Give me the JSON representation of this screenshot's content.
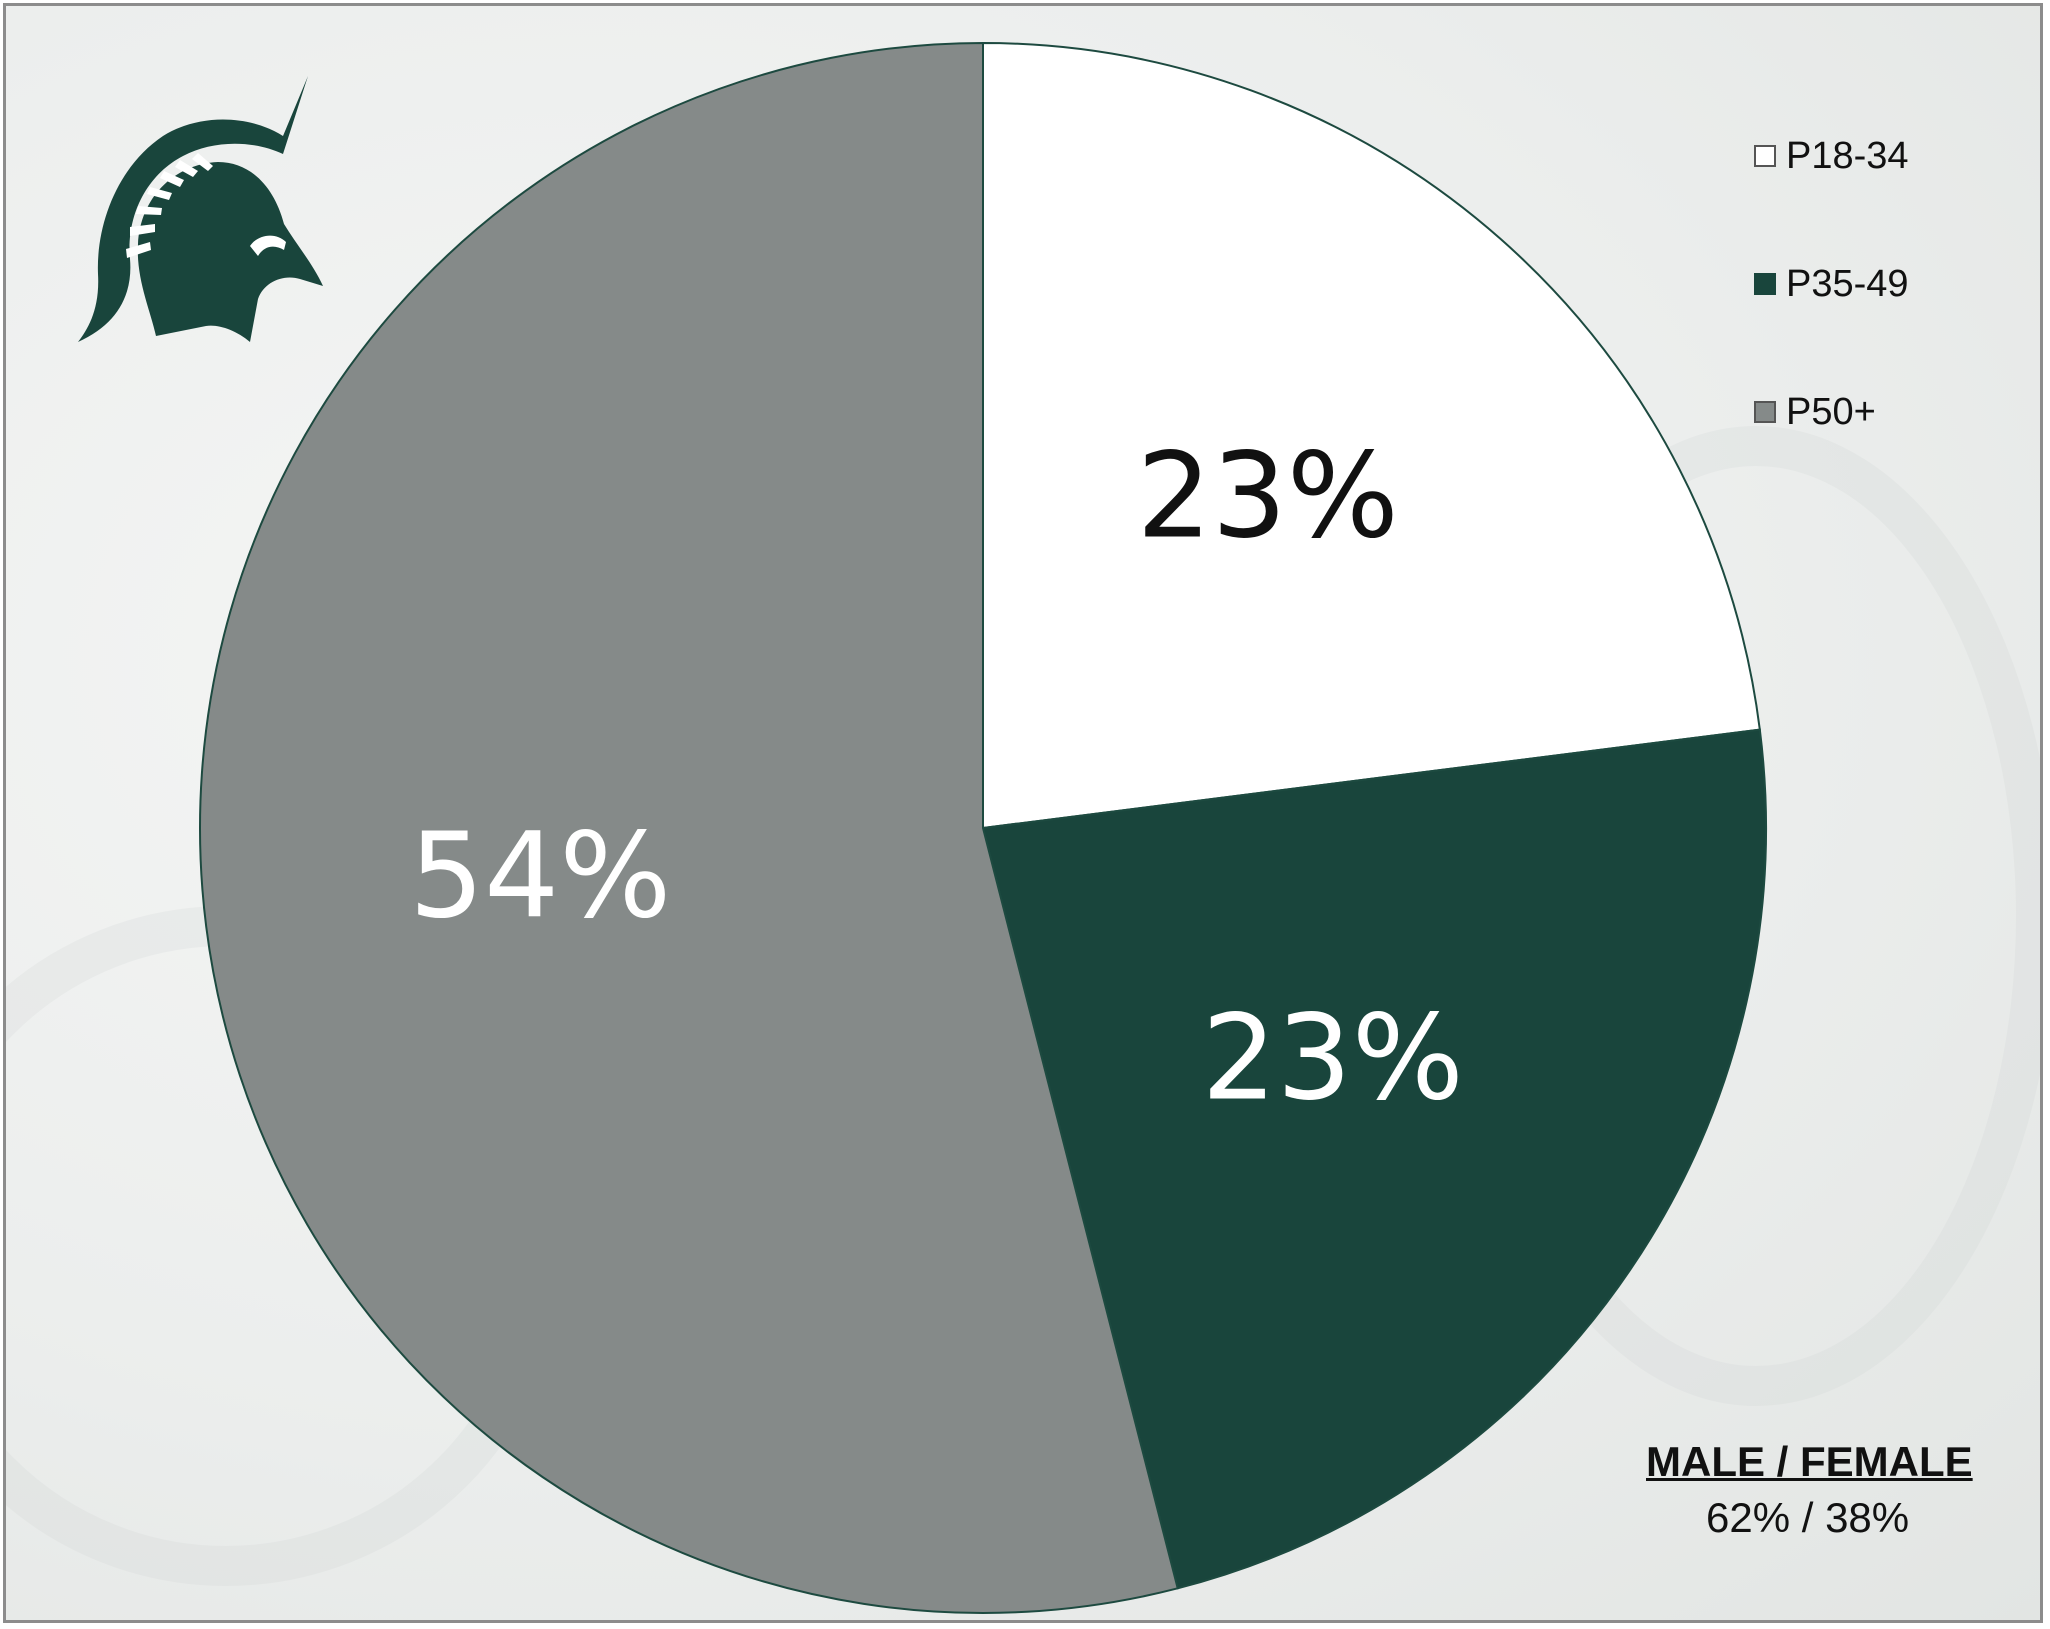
{
  "chart_data": {
    "type": "pie",
    "categories": [
      "P18-34",
      "P35-49",
      "P50+"
    ],
    "values": [
      23,
      23,
      54
    ],
    "data_labels": [
      "23%",
      "23%",
      "54%"
    ],
    "colors": [
      "#ffffff",
      "#19453c",
      "#858a89"
    ],
    "label_colors": [
      "#111111",
      "#ffffff",
      "#ffffff"
    ],
    "legend_placement": "top-right",
    "title": ""
  },
  "gender": {
    "title": "MALE / FEMALE",
    "values": "62% / 38%"
  },
  "colors": {
    "brand_green": "#19453c",
    "gray": "#858a89"
  },
  "logo": {
    "icon": "spartan-helmet-icon"
  }
}
